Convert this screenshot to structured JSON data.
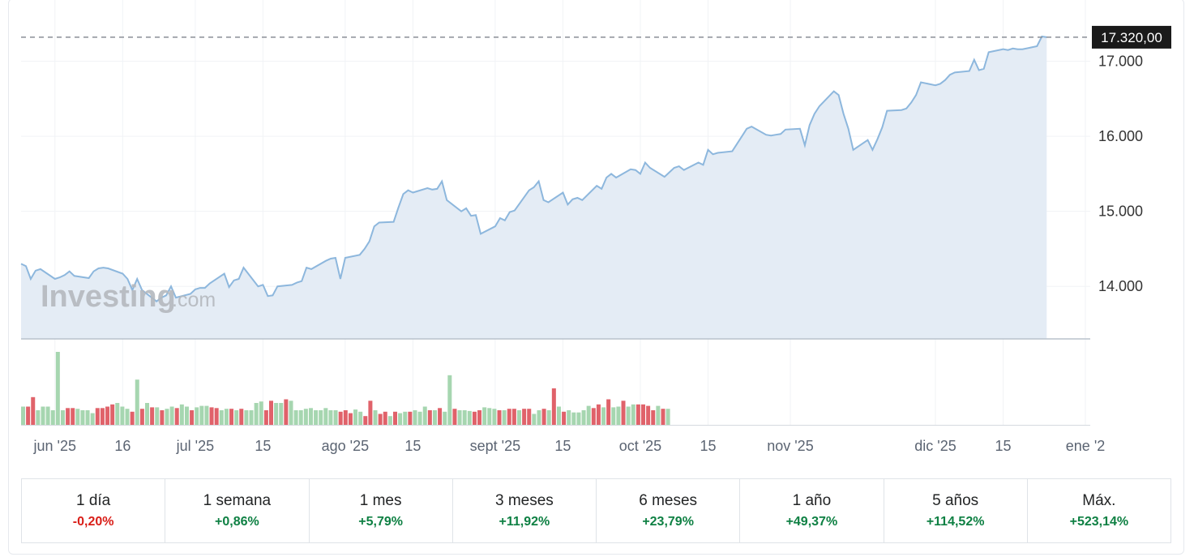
{
  "watermark": {
    "brand": "Investing",
    "suffix": ".com"
  },
  "last_price_label": "17.320,00",
  "colors": {
    "line": "#8db7dd",
    "area": "#e4ecf5",
    "volume_up": "#a6d6b0",
    "volume_down": "#e0626a",
    "last_price_bg": "#1a1a1a",
    "positive": "#0e8043",
    "negative": "#d91e18"
  },
  "chart_data": {
    "type": "area",
    "title": "",
    "y_axis": {
      "range": [
        13300,
        17600
      ],
      "ticks": [
        14000,
        15000,
        16000,
        17000
      ],
      "tick_labels": [
        "14.000",
        "15.000",
        "16.000",
        "17.000"
      ]
    },
    "x_axis": {
      "range": [
        "2025-05-26",
        "2026-01-02"
      ],
      "ticks": [
        "2025-06-02",
        "2025-06-16",
        "2025-07-01",
        "2025-07-15",
        "2025-08-01",
        "2025-08-15",
        "2025-09-01",
        "2025-09-15",
        "2025-10-01",
        "2025-10-15",
        "2025-11-01",
        "2025-12-01",
        "2025-12-15",
        "2026-01-01"
      ],
      "tick_labels": [
        "jun '25",
        "16",
        "jul '25",
        "15",
        "ago '25",
        "15",
        "sept '25",
        "15",
        "oct '25",
        "15",
        "nov '25",
        "dic '25",
        "15",
        "ene '2"
      ]
    },
    "last_price": 17320,
    "price_series": [
      [
        "2025-05-26",
        14300
      ],
      [
        "2025-05-27",
        14270
      ],
      [
        "2025-05-28",
        14100
      ],
      [
        "2025-05-29",
        14210
      ],
      [
        "2025-05-30",
        14230
      ],
      [
        "2025-06-02",
        14100
      ],
      [
        "2025-06-03",
        14120
      ],
      [
        "2025-06-04",
        14150
      ],
      [
        "2025-06-05",
        14200
      ],
      [
        "2025-06-06",
        14140
      ],
      [
        "2025-06-09",
        14110
      ],
      [
        "2025-06-10",
        14200
      ],
      [
        "2025-06-11",
        14240
      ],
      [
        "2025-06-12",
        14250
      ],
      [
        "2025-06-13",
        14240
      ],
      [
        "2025-06-16",
        14170
      ],
      [
        "2025-06-17",
        14100
      ],
      [
        "2025-06-18",
        13950
      ],
      [
        "2025-06-19",
        14100
      ],
      [
        "2025-06-20",
        13950
      ],
      [
        "2025-06-23",
        13800
      ],
      [
        "2025-06-24",
        13850
      ],
      [
        "2025-06-25",
        13880
      ],
      [
        "2025-06-26",
        14000
      ],
      [
        "2025-06-27",
        13850
      ],
      [
        "2025-06-30",
        13900
      ],
      [
        "2025-07-01",
        13960
      ],
      [
        "2025-07-02",
        13980
      ],
      [
        "2025-07-03",
        13980
      ],
      [
        "2025-07-04",
        14040
      ],
      [
        "2025-07-07",
        14170
      ],
      [
        "2025-07-08",
        13990
      ],
      [
        "2025-07-09",
        14080
      ],
      [
        "2025-07-10",
        14100
      ],
      [
        "2025-07-11",
        14250
      ],
      [
        "2025-07-14",
        14000
      ],
      [
        "2025-07-15",
        14020
      ],
      [
        "2025-07-16",
        13870
      ],
      [
        "2025-07-17",
        13880
      ],
      [
        "2025-07-18",
        14000
      ],
      [
        "2025-07-21",
        14020
      ],
      [
        "2025-07-22",
        14050
      ],
      [
        "2025-07-23",
        14070
      ],
      [
        "2025-07-24",
        14250
      ],
      [
        "2025-07-25",
        14230
      ],
      [
        "2025-07-28",
        14340
      ],
      [
        "2025-07-29",
        14370
      ],
      [
        "2025-07-30",
        14380
      ],
      [
        "2025-07-31",
        14100
      ],
      [
        "2025-08-01",
        14380
      ],
      [
        "2025-08-04",
        14420
      ],
      [
        "2025-08-05",
        14500
      ],
      [
        "2025-08-06",
        14600
      ],
      [
        "2025-08-07",
        14800
      ],
      [
        "2025-08-08",
        14850
      ],
      [
        "2025-08-11",
        14860
      ],
      [
        "2025-08-12",
        15050
      ],
      [
        "2025-08-13",
        15230
      ],
      [
        "2025-08-14",
        15280
      ],
      [
        "2025-08-15",
        15250
      ],
      [
        "2025-08-18",
        15310
      ],
      [
        "2025-08-19",
        15290
      ],
      [
        "2025-08-20",
        15300
      ],
      [
        "2025-08-21",
        15400
      ],
      [
        "2025-08-22",
        15150
      ],
      [
        "2025-08-25",
        15000
      ],
      [
        "2025-08-26",
        15040
      ],
      [
        "2025-08-27",
        14940
      ],
      [
        "2025-08-28",
        14950
      ],
      [
        "2025-08-29",
        14700
      ],
      [
        "2025-09-01",
        14800
      ],
      [
        "2025-09-02",
        14910
      ],
      [
        "2025-09-03",
        14880
      ],
      [
        "2025-09-04",
        14990
      ],
      [
        "2025-09-05",
        15010
      ],
      [
        "2025-09-08",
        15280
      ],
      [
        "2025-09-09",
        15320
      ],
      [
        "2025-09-10",
        15400
      ],
      [
        "2025-09-11",
        15150
      ],
      [
        "2025-09-12",
        15120
      ],
      [
        "2025-09-15",
        15250
      ],
      [
        "2025-09-16",
        15090
      ],
      [
        "2025-09-17",
        15160
      ],
      [
        "2025-09-18",
        15180
      ],
      [
        "2025-09-19",
        15150
      ],
      [
        "2025-09-22",
        15340
      ],
      [
        "2025-09-23",
        15300
      ],
      [
        "2025-09-24",
        15450
      ],
      [
        "2025-09-25",
        15500
      ],
      [
        "2025-09-26",
        15450
      ],
      [
        "2025-09-29",
        15560
      ],
      [
        "2025-09-30",
        15550
      ],
      [
        "2025-10-01",
        15500
      ],
      [
        "2025-10-02",
        15650
      ],
      [
        "2025-10-03",
        15580
      ],
      [
        "2025-10-06",
        15460
      ],
      [
        "2025-10-07",
        15520
      ],
      [
        "2025-10-08",
        15580
      ],
      [
        "2025-10-09",
        15600
      ],
      [
        "2025-10-10",
        15550
      ],
      [
        "2025-10-13",
        15650
      ],
      [
        "2025-10-14",
        15620
      ],
      [
        "2025-10-15",
        15820
      ],
      [
        "2025-10-16",
        15760
      ],
      [
        "2025-10-17",
        15780
      ],
      [
        "2025-10-20",
        15800
      ],
      [
        "2025-10-21",
        15900
      ],
      [
        "2025-10-22",
        16000
      ],
      [
        "2025-10-23",
        16100
      ],
      [
        "2025-10-24",
        16130
      ],
      [
        "2025-10-27",
        16020
      ],
      [
        "2025-10-28",
        16010
      ],
      [
        "2025-10-29",
        16020
      ],
      [
        "2025-10-30",
        16030
      ],
      [
        "2025-10-31",
        16090
      ],
      [
        "2025-11-03",
        16100
      ],
      [
        "2025-11-04",
        15880
      ],
      [
        "2025-11-05",
        16150
      ],
      [
        "2025-11-06",
        16300
      ],
      [
        "2025-11-07",
        16400
      ],
      [
        "2025-11-10",
        16600
      ],
      [
        "2025-11-11",
        16550
      ],
      [
        "2025-11-12",
        16300
      ],
      [
        "2025-11-13",
        16100
      ],
      [
        "2025-11-14",
        15820
      ],
      [
        "2025-11-17",
        15950
      ],
      [
        "2025-11-18",
        15820
      ],
      [
        "2025-11-19",
        15960
      ],
      [
        "2025-11-20",
        16120
      ],
      [
        "2025-11-21",
        16340
      ],
      [
        "2025-11-24",
        16350
      ],
      [
        "2025-11-25",
        16370
      ],
      [
        "2025-11-26",
        16450
      ],
      [
        "2025-11-27",
        16550
      ],
      [
        "2025-11-28",
        16720
      ],
      [
        "2025-12-01",
        16680
      ],
      [
        "2025-12-02",
        16700
      ],
      [
        "2025-12-03",
        16750
      ],
      [
        "2025-12-04",
        16820
      ],
      [
        "2025-12-05",
        16850
      ],
      [
        "2025-12-08",
        16870
      ],
      [
        "2025-12-09",
        17020
      ],
      [
        "2025-12-10",
        16880
      ],
      [
        "2025-12-11",
        16900
      ],
      [
        "2025-12-12",
        17120
      ],
      [
        "2025-12-15",
        17160
      ],
      [
        "2025-12-16",
        17150
      ],
      [
        "2025-12-17",
        17170
      ],
      [
        "2025-12-18",
        17160
      ],
      [
        "2025-12-19",
        17160
      ],
      [
        "2025-12-22",
        17200
      ],
      [
        "2025-12-23",
        17330
      ],
      [
        "2025-12-24",
        17320
      ]
    ],
    "volume_series": [
      [
        0.25,
        0
      ],
      [
        0.25,
        1
      ],
      [
        0.38,
        1
      ],
      [
        0.2,
        0
      ],
      [
        0.25,
        0
      ],
      [
        0.25,
        0
      ],
      [
        0.2,
        0
      ],
      [
        1.0,
        0
      ],
      [
        0.2,
        0
      ],
      [
        0.23,
        1
      ],
      [
        0.23,
        1
      ],
      [
        0.22,
        0
      ],
      [
        0.2,
        0
      ],
      [
        0.2,
        0
      ],
      [
        0.16,
        0
      ],
      [
        0.23,
        1
      ],
      [
        0.23,
        1
      ],
      [
        0.25,
        1
      ],
      [
        0.28,
        1
      ],
      [
        0.3,
        0
      ],
      [
        0.25,
        0
      ],
      [
        0.22,
        0
      ],
      [
        0.18,
        1
      ],
      [
        0.62,
        0
      ],
      [
        0.22,
        1
      ],
      [
        0.3,
        0
      ],
      [
        0.24,
        1
      ],
      [
        0.24,
        0
      ],
      [
        0.2,
        1
      ],
      [
        0.22,
        0
      ],
      [
        0.25,
        0
      ],
      [
        0.23,
        1
      ],
      [
        0.28,
        0
      ],
      [
        0.25,
        0
      ],
      [
        0.2,
        1
      ],
      [
        0.24,
        0
      ],
      [
        0.26,
        0
      ],
      [
        0.26,
        0
      ],
      [
        0.24,
        1
      ],
      [
        0.23,
        1
      ],
      [
        0.2,
        0
      ],
      [
        0.22,
        0
      ],
      [
        0.22,
        1
      ],
      [
        0.2,
        0
      ],
      [
        0.22,
        1
      ],
      [
        0.2,
        0
      ],
      [
        0.2,
        0
      ],
      [
        0.3,
        0
      ],
      [
        0.32,
        0
      ],
      [
        0.2,
        1
      ],
      [
        0.33,
        1
      ],
      [
        0.3,
        0
      ],
      [
        0.3,
        0
      ],
      [
        0.35,
        1
      ],
      [
        0.33,
        0
      ],
      [
        0.2,
        0
      ],
      [
        0.2,
        0
      ],
      [
        0.22,
        0
      ],
      [
        0.23,
        0
      ],
      [
        0.2,
        0
      ],
      [
        0.2,
        0
      ],
      [
        0.23,
        0
      ],
      [
        0.2,
        0
      ],
      [
        0.2,
        0
      ],
      [
        0.18,
        1
      ],
      [
        0.2,
        1
      ],
      [
        0.16,
        1
      ],
      [
        0.21,
        0
      ],
      [
        0.18,
        0
      ],
      [
        0.12,
        1
      ],
      [
        0.33,
        1
      ],
      [
        0.2,
        0
      ],
      [
        0.15,
        1
      ],
      [
        0.18,
        1
      ],
      [
        0.12,
        0
      ],
      [
        0.18,
        1
      ],
      [
        0.16,
        0
      ],
      [
        0.18,
        0
      ],
      [
        0.18,
        1
      ],
      [
        0.2,
        0
      ],
      [
        0.18,
        0
      ],
      [
        0.25,
        0
      ],
      [
        0.2,
        1
      ],
      [
        0.2,
        0
      ],
      [
        0.23,
        1
      ],
      [
        0.18,
        0
      ],
      [
        0.68,
        0
      ],
      [
        0.22,
        1
      ],
      [
        0.2,
        0
      ],
      [
        0.2,
        0
      ],
      [
        0.19,
        0
      ],
      [
        0.18,
        1
      ],
      [
        0.2,
        1
      ],
      [
        0.24,
        0
      ],
      [
        0.23,
        0
      ],
      [
        0.22,
        0
      ],
      [
        0.2,
        1
      ],
      [
        0.2,
        0
      ],
      [
        0.22,
        1
      ],
      [
        0.22,
        1
      ],
      [
        0.2,
        0
      ],
      [
        0.22,
        1
      ],
      [
        0.22,
        1
      ],
      [
        0.15,
        0
      ],
      [
        0.2,
        0
      ],
      [
        0.22,
        1
      ],
      [
        0.2,
        0
      ],
      [
        0.5,
        1
      ],
      [
        0.25,
        0
      ],
      [
        0.18,
        1
      ],
      [
        0.2,
        0
      ],
      [
        0.17,
        0
      ],
      [
        0.17,
        0
      ],
      [
        0.2,
        0
      ],
      [
        0.26,
        0
      ],
      [
        0.23,
        1
      ],
      [
        0.28,
        1
      ],
      [
        0.24,
        0
      ],
      [
        0.35,
        1
      ],
      [
        0.24,
        0
      ],
      [
        0.25,
        0
      ],
      [
        0.33,
        1
      ],
      [
        0.25,
        0
      ],
      [
        0.28,
        0
      ],
      [
        0.28,
        1
      ],
      [
        0.28,
        1
      ],
      [
        0.26,
        1
      ],
      [
        0.2,
        1
      ],
      [
        0.26,
        0
      ],
      [
        0.22,
        1
      ],
      [
        0.22,
        0
      ]
    ],
    "performance": [
      {
        "label": "1 día",
        "value": "-0,20%",
        "direction": "down"
      },
      {
        "label": "1 semana",
        "value": "+0,86%",
        "direction": "up"
      },
      {
        "label": "1 mes",
        "value": "+5,79%",
        "direction": "up"
      },
      {
        "label": "3 meses",
        "value": "+11,92%",
        "direction": "up"
      },
      {
        "label": "6 meses",
        "value": "+23,79%",
        "direction": "up"
      },
      {
        "label": "1 año",
        "value": "+49,37%",
        "direction": "up"
      },
      {
        "label": "5 años",
        "value": "+114,52%",
        "direction": "up"
      },
      {
        "label": "Máx.",
        "value": "+523,14%",
        "direction": "up"
      }
    ]
  }
}
